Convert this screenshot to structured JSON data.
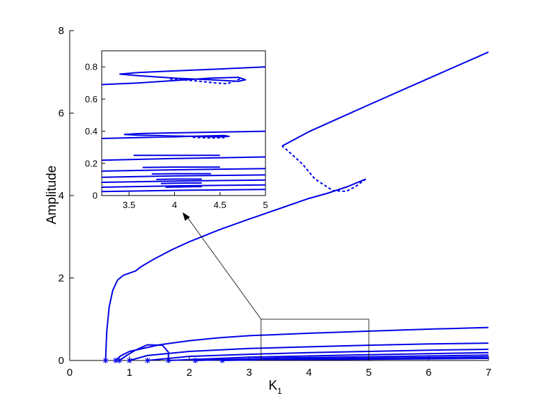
{
  "chart_data": [
    {
      "type": "line",
      "xlabel": "K",
      "xlabel_subscript": "1",
      "ylabel": "Amplitude",
      "xlim": [
        0,
        7
      ],
      "ylim": [
        0,
        8
      ],
      "xticks": [
        "0",
        "1",
        "2",
        "3",
        "4",
        "5",
        "6",
        "7"
      ],
      "yticks": [
        "0",
        "2",
        "4",
        "6",
        "8"
      ],
      "color": "#0000e6",
      "grid": false,
      "marker_points": {
        "symbol": "*",
        "x": [
          0.6,
          0.77,
          0.83,
          1.0,
          1.3,
          1.65,
          2.1,
          2.55
        ],
        "y": [
          0,
          0,
          0,
          0,
          0,
          0,
          0,
          0
        ]
      },
      "series": [
        {
          "style": "solid",
          "points": [
            [
              0.6,
              0
            ],
            [
              0.62,
              0.7
            ],
            [
              0.66,
              1.3
            ],
            [
              0.72,
              1.7
            ],
            [
              0.8,
              1.95
            ],
            [
              0.9,
              2.07
            ],
            [
              1.0,
              2.12
            ],
            [
              1.1,
              2.17
            ],
            [
              1.2,
              2.28
            ],
            [
              1.4,
              2.45
            ],
            [
              1.7,
              2.68
            ],
            [
              2.0,
              2.88
            ],
            [
              2.5,
              3.17
            ],
            [
              3.0,
              3.43
            ],
            [
              3.5,
              3.68
            ],
            [
              4.0,
              3.93
            ],
            [
              4.3,
              4.05
            ],
            [
              4.65,
              4.22
            ],
            [
              4.95,
              4.4
            ]
          ]
        },
        {
          "style": "dashed",
          "points": [
            [
              4.95,
              4.4
            ],
            [
              4.78,
              4.22
            ],
            [
              4.62,
              4.1
            ],
            [
              4.4,
              4.12
            ],
            [
              4.1,
              4.4
            ],
            [
              3.9,
              4.75
            ],
            [
              3.75,
              4.95
            ],
            [
              3.62,
              5.12
            ],
            [
              3.55,
              5.2
            ]
          ]
        },
        {
          "style": "solid",
          "points": [
            [
              3.55,
              5.2
            ],
            [
              4.0,
              5.55
            ],
            [
              5.0,
              6.2
            ],
            [
              6.0,
              6.84
            ],
            [
              7.0,
              7.48
            ]
          ]
        },
        {
          "style": "solid",
          "points": [
            [
              0.77,
              0
            ],
            [
              0.85,
              0.11
            ],
            [
              1.0,
              0.22
            ],
            [
              1.5,
              0.38
            ],
            [
              2.0,
              0.48
            ],
            [
              2.5,
              0.55
            ],
            [
              3.0,
              0.6
            ],
            [
              4.0,
              0.66
            ],
            [
              5.0,
              0.71
            ],
            [
              6.0,
              0.76
            ],
            [
              7.0,
              0.8
            ]
          ]
        },
        {
          "style": "solid",
          "points": [
            [
              0.83,
              0
            ],
            [
              0.95,
              0.12
            ],
            [
              1.1,
              0.25
            ],
            [
              1.3,
              0.38
            ],
            [
              1.55,
              0.37
            ],
            [
              1.65,
              0.2
            ],
            [
              1.65,
              0
            ]
          ]
        },
        {
          "style": "solid",
          "points": [
            [
              1.0,
              0
            ],
            [
              1.3,
              0.12
            ],
            [
              2.0,
              0.22
            ],
            [
              3.0,
              0.29
            ],
            [
              4.0,
              0.33
            ],
            [
              5.0,
              0.37
            ],
            [
              6.0,
              0.4
            ],
            [
              7.0,
              0.42
            ]
          ]
        },
        {
          "style": "solid",
          "points": [
            [
              1.3,
              0
            ],
            [
              2.0,
              0.1
            ],
            [
              3.0,
              0.15
            ],
            [
              4.0,
              0.19
            ],
            [
              5.0,
              0.22
            ],
            [
              6.0,
              0.25
            ],
            [
              7.0,
              0.27
            ]
          ]
        },
        {
          "style": "solid",
          "points": [
            [
              1.65,
              0
            ],
            [
              3.0,
              0.08
            ],
            [
              5.0,
              0.14
            ],
            [
              7.0,
              0.19
            ]
          ]
        },
        {
          "style": "solid",
          "points": [
            [
              2.1,
              0
            ],
            [
              3.5,
              0.06
            ],
            [
              5.5,
              0.1
            ],
            [
              7.0,
              0.13
            ]
          ]
        },
        {
          "style": "solid",
          "points": [
            [
              2.55,
              0
            ],
            [
              4.0,
              0.04
            ],
            [
              6.0,
              0.07
            ],
            [
              7.0,
              0.09
            ]
          ]
        },
        {
          "style": "solid",
          "points": [
            [
              3.3,
              0.01
            ],
            [
              5.0,
              0.03
            ],
            [
              7.0,
              0.05
            ]
          ]
        }
      ],
      "zoom_region": {
        "x": [
          3.2,
          5.0
        ],
        "y": [
          0,
          1.0
        ]
      }
    },
    {
      "type": "line",
      "role": "inset",
      "xlim": [
        3.2,
        5
      ],
      "ylim": [
        0,
        0.9
      ],
      "xticks": [
        "3.5",
        "4",
        "4.5",
        "5"
      ],
      "yticks": [
        "0",
        "0.2",
        "0.4",
        "0.6",
        "0.8"
      ],
      "series": [
        {
          "style": "solid",
          "points": [
            [
              3.2,
              0.69
            ],
            [
              3.6,
              0.7
            ],
            [
              4.0,
              0.715
            ],
            [
              4.4,
              0.73
            ],
            [
              4.7,
              0.735
            ],
            [
              4.78,
              0.72
            ],
            [
              4.7,
              0.71
            ],
            [
              4.4,
              0.72
            ],
            [
              4.0,
              0.73
            ],
            [
              3.6,
              0.745
            ],
            [
              3.4,
              0.755
            ],
            [
              3.6,
              0.765
            ],
            [
              4.0,
              0.775
            ],
            [
              4.5,
              0.787
            ],
            [
              5.0,
              0.8
            ]
          ]
        },
        {
          "style": "dashed",
          "points": [
            [
              3.95,
              0.725
            ],
            [
              4.2,
              0.715
            ],
            [
              4.45,
              0.7
            ],
            [
              4.58,
              0.695
            ],
            [
              4.66,
              0.712
            ],
            [
              4.72,
              0.725
            ]
          ]
        },
        {
          "style": "solid",
          "points": [
            [
              3.2,
              0.355
            ],
            [
              3.6,
              0.36
            ],
            [
              4.0,
              0.365
            ],
            [
              4.3,
              0.37
            ],
            [
              4.55,
              0.373
            ],
            [
              4.6,
              0.368
            ],
            [
              4.5,
              0.365
            ],
            [
              4.0,
              0.37
            ],
            [
              3.6,
              0.375
            ],
            [
              3.45,
              0.38
            ],
            [
              3.6,
              0.385
            ],
            [
              4.0,
              0.39
            ],
            [
              4.5,
              0.395
            ],
            [
              5.0,
              0.4
            ]
          ]
        },
        {
          "style": "dashed",
          "points": [
            [
              4.2,
              0.362
            ],
            [
              4.4,
              0.358
            ],
            [
              4.55,
              0.36
            ]
          ]
        },
        {
          "style": "solid",
          "points": [
            [
              3.2,
              0.22
            ],
            [
              4.0,
              0.23
            ],
            [
              4.5,
              0.235
            ],
            [
              5.0,
              0.24
            ]
          ]
        },
        {
          "style": "solid",
          "points": [
            [
              3.55,
              0.25
            ],
            [
              4.0,
              0.25
            ],
            [
              4.5,
              0.25
            ]
          ]
        },
        {
          "style": "solid",
          "points": [
            [
              3.2,
              0.152
            ],
            [
              4.0,
              0.16
            ],
            [
              5.0,
              0.168
            ]
          ]
        },
        {
          "style": "solid",
          "points": [
            [
              3.65,
              0.175
            ],
            [
              4.0,
              0.177
            ],
            [
              4.5,
              0.177
            ]
          ]
        },
        {
          "style": "solid",
          "points": [
            [
              3.2,
              0.114
            ],
            [
              4.0,
              0.122
            ],
            [
              5.0,
              0.128
            ]
          ]
        },
        {
          "style": "solid",
          "points": [
            [
              3.75,
              0.134
            ],
            [
              4.0,
              0.136
            ],
            [
              4.4,
              0.136
            ]
          ]
        },
        {
          "style": "solid",
          "points": [
            [
              3.2,
              0.082
            ],
            [
              4.0,
              0.09
            ],
            [
              5.0,
              0.096
            ]
          ]
        },
        {
          "style": "solid",
          "points": [
            [
              3.8,
              0.1
            ],
            [
              4.0,
              0.102
            ],
            [
              4.3,
              0.102
            ]
          ]
        },
        {
          "style": "solid",
          "points": [
            [
              3.2,
              0.052
            ],
            [
              4.0,
              0.06
            ],
            [
              5.0,
              0.066
            ]
          ]
        },
        {
          "style": "solid",
          "points": [
            [
              3.85,
              0.075
            ],
            [
              4.1,
              0.078
            ],
            [
              4.3,
              0.078
            ]
          ]
        },
        {
          "style": "solid",
          "points": [
            [
              3.2,
              0.025
            ],
            [
              4.0,
              0.032
            ],
            [
              5.0,
              0.038
            ]
          ]
        },
        {
          "style": "solid",
          "points": [
            [
              3.9,
              0.052
            ],
            [
              4.2,
              0.055
            ],
            [
              4.3,
              0.055
            ]
          ]
        }
      ]
    }
  ]
}
